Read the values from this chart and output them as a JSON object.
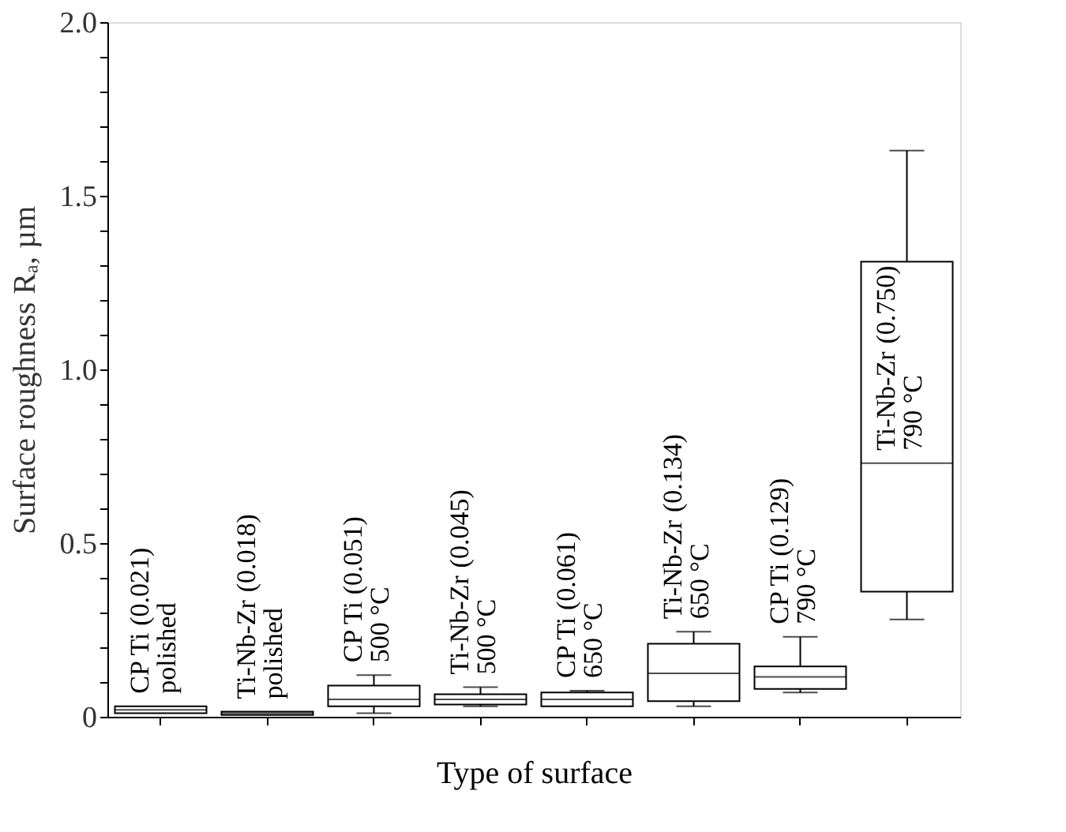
{
  "chart_data": {
    "type": "box",
    "xlabel": "Type of surface",
    "ylabel": "Surface roughness Rₐ, µm",
    "categories": [
      "CP Ti\npolished",
      "Ti-Nb-Zr\npolished",
      "CP Ti\n500 °C",
      "Ti-Nb-Zr\n500 °C",
      "CP Ti\n650 °C",
      "Ti-Nb-Zr\n650 °C",
      "CP Ti\n790 °C",
      "Ti-Nb-Zr\n790 °C"
    ],
    "boxes": [
      {
        "low": 0.01,
        "q1": 0.01,
        "median": 0.02,
        "q3": 0.03,
        "high": 0.03
      },
      {
        "low": 0.005,
        "q1": 0.005,
        "median": 0.01,
        "q3": 0.015,
        "high": 0.015
      },
      {
        "low": 0.01,
        "q1": 0.03,
        "median": 0.05,
        "q3": 0.09,
        "high": 0.12
      },
      {
        "low": 0.03,
        "q1": 0.035,
        "median": 0.05,
        "q3": 0.065,
        "high": 0.085
      },
      {
        "low": 0.03,
        "q1": 0.03,
        "median": 0.05,
        "q3": 0.07,
        "high": 0.075
      },
      {
        "low": 0.03,
        "q1": 0.045,
        "median": 0.125,
        "q3": 0.21,
        "high": 0.245
      },
      {
        "low": 0.07,
        "q1": 0.08,
        "median": 0.115,
        "q3": 0.145,
        "high": 0.23
      },
      {
        "low": 0.28,
        "q1": 0.36,
        "median": 0.73,
        "q3": 1.31,
        "high": 1.63
      }
    ],
    "annotations": [
      "(0.021)",
      "(0.018)",
      "(0.051)",
      "(0.045)",
      "(0.061)",
      "(0.134)",
      "(0.129)",
      "(0.750)"
    ],
    "ylim": [
      0,
      2.0
    ],
    "yticks": [
      0,
      {
        "value": 0.1,
        "label": null
      },
      {
        "value": 0.2,
        "label": null
      },
      {
        "value": 0.3,
        "label": null
      },
      {
        "value": 0.4,
        "label": null
      },
      {
        "value": 0.5,
        "label": "0.5"
      },
      {
        "value": 0.6,
        "label": null
      },
      {
        "value": 0.7,
        "label": null
      },
      {
        "value": 0.8,
        "label": null
      },
      {
        "value": 0.9,
        "label": null
      },
      {
        "value": 1.0,
        "label": "1.0"
      },
      {
        "value": 1.1,
        "label": null
      },
      {
        "value": 1.2,
        "label": null
      },
      {
        "value": 1.3,
        "label": null
      },
      {
        "value": 1.4,
        "label": null
      },
      {
        "value": 1.5,
        "label": "1.5"
      },
      {
        "value": 1.6,
        "label": null
      },
      {
        "value": 1.7,
        "label": null
      },
      {
        "value": 1.8,
        "label": null
      },
      {
        "value": 1.9,
        "label": null
      },
      {
        "value": 2.0,
        "label": "2.0"
      }
    ],
    "tick_labels": "y",
    "grid": false
  }
}
